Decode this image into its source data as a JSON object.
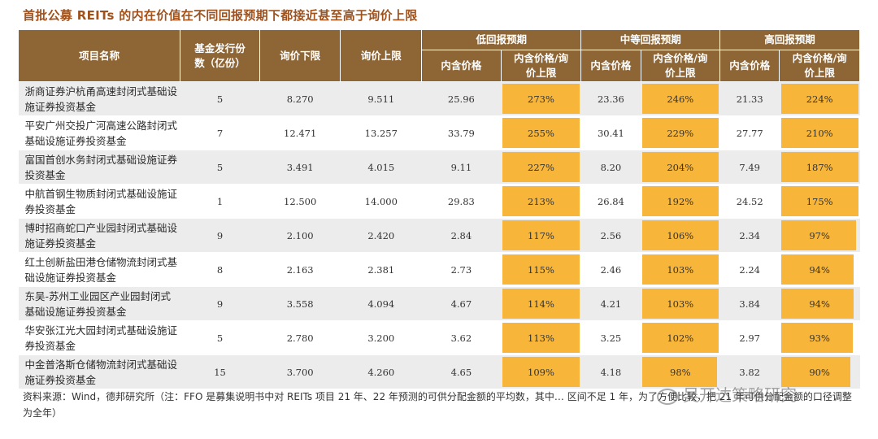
{
  "title": "首批公募 REITs 的内在价值在不同回报预期下都接近甚至高于询价上限",
  "header": {
    "project": "项目名称",
    "shares": "基金发行份数（亿份）",
    "low_price": "询价下限",
    "high_price": "询价上限",
    "groups": [
      "低回报预期",
      "中等回报预期",
      "高回报预期"
    ],
    "intrinsic": "内含价格",
    "ratio": "内含价格/询价上限"
  },
  "rows": [
    {
      "name": "浙商证券沪杭甬高速封闭式基础设施证券投资基金",
      "shares": "5",
      "low": "8.270",
      "high": "9.511",
      "v1": "25.96",
      "p1": "273%",
      "v2": "23.36",
      "p2": "246%",
      "v3": "21.33",
      "p3": "224%"
    },
    {
      "name": "平安广州交投广河高速公路封闭式基础设施证券投资基金",
      "shares": "7",
      "low": "12.471",
      "high": "13.257",
      "v1": "33.79",
      "p1": "255%",
      "v2": "30.41",
      "p2": "229%",
      "v3": "27.77",
      "p3": "210%"
    },
    {
      "name": "富国首创水务封闭式基础设施证券投资基金",
      "shares": "5",
      "low": "3.491",
      "high": "4.015",
      "v1": "9.11",
      "p1": "227%",
      "v2": "8.20",
      "p2": "204%",
      "v3": "7.49",
      "p3": "187%"
    },
    {
      "name": "中航首钢生物质封闭式基础设施证券投资基金",
      "shares": "1",
      "low": "12.500",
      "high": "14.000",
      "v1": "29.83",
      "p1": "213%",
      "v2": "26.84",
      "p2": "192%",
      "v3": "24.52",
      "p3": "175%"
    },
    {
      "name": "博时招商蛇口产业园封闭式基础设施证券投资基金",
      "shares": "9",
      "low": "2.100",
      "high": "2.420",
      "v1": "2.84",
      "p1": "117%",
      "v2": "2.56",
      "p2": "106%",
      "v3": "2.34",
      "p3": "97%"
    },
    {
      "name": "红土创新盐田港仓储物流封闭式基础设施证券投资基金",
      "shares": "8",
      "low": "2.163",
      "high": "2.381",
      "v1": "2.73",
      "p1": "115%",
      "v2": "2.46",
      "p2": "103%",
      "v3": "2.24",
      "p3": "94%"
    },
    {
      "name": "东吴-苏州工业园区产业园封闭式基础设施证券投资基金",
      "shares": "9",
      "low": "3.558",
      "high": "4.094",
      "v1": "4.67",
      "p1": "114%",
      "v2": "4.21",
      "p2": "103%",
      "v3": "3.84",
      "p3": "94%"
    },
    {
      "name": "华安张江光大园封闭式基础设施证券投资基金",
      "shares": "5",
      "low": "2.780",
      "high": "3.200",
      "v1": "3.62",
      "p1": "113%",
      "v2": "3.25",
      "p2": "102%",
      "v3": "2.97",
      "p3": "93%"
    },
    {
      "name": "中金普洛斯仓储物流封闭式基础设施证券投资基金",
      "shares": "15",
      "low": "3.700",
      "high": "4.260",
      "v1": "4.65",
      "p1": "109%",
      "v2": "4.18",
      "p2": "98%",
      "v3": "3.82",
      "p3": "90%"
    }
  ],
  "bar_fraction": {
    "p1": [
      1,
      1,
      1,
      1,
      1,
      1,
      1,
      1,
      1
    ],
    "p2": [
      1,
      1,
      1,
      1,
      1,
      1,
      1,
      1,
      0.98
    ],
    "p3": [
      1,
      1,
      1,
      1,
      0.97,
      0.94,
      0.94,
      0.93,
      0.9
    ]
  },
  "note": "资料来源：Wind，德邦研究所（注：FFO 是募集说明书中对 REITs 项目 21 年、22 年预测的可供分配金额的平均数，其中… 区间不足 1 年，为了方便比较，把 21 年可供分配金额的口径调整为全年）",
  "watermark": "吴开达策略研究",
  "colors": {
    "header_bg": "#8e6636",
    "highlight": "#f7b53a",
    "title": "#a0521d",
    "stripe": "#ececec"
  }
}
